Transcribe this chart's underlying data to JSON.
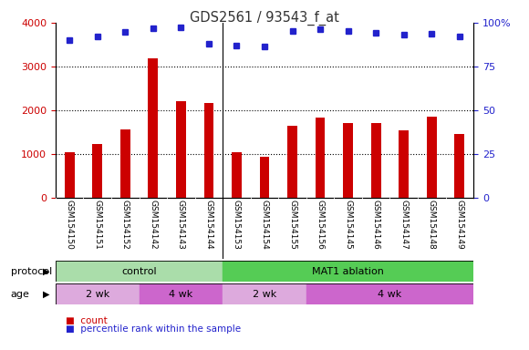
{
  "title": "GDS2561 / 93543_f_at",
  "samples": [
    "GSM154150",
    "GSM154151",
    "GSM154152",
    "GSM154142",
    "GSM154143",
    "GSM154144",
    "GSM154153",
    "GSM154154",
    "GSM154155",
    "GSM154156",
    "GSM154145",
    "GSM154146",
    "GSM154147",
    "GSM154148",
    "GSM154149"
  ],
  "counts": [
    1050,
    1230,
    1560,
    3180,
    2200,
    2160,
    1040,
    940,
    1640,
    1840,
    1700,
    1700,
    1550,
    1860,
    1450
  ],
  "percentile_raw": [
    3600,
    3680,
    3800,
    3880,
    3900,
    3520,
    3480,
    3460,
    3820,
    3860,
    3810,
    3760,
    3720,
    3750,
    3680
  ],
  "ylim_left": [
    0,
    4000
  ],
  "ylim_right": [
    0,
    100
  ],
  "yticks_left": [
    0,
    1000,
    2000,
    3000,
    4000
  ],
  "ytick_labels_left": [
    "0",
    "1000",
    "2000",
    "3000",
    "4000"
  ],
  "yticks_right": [
    0,
    25,
    50,
    75,
    100
  ],
  "ytick_labels_right": [
    "0",
    "25",
    "50",
    "75",
    "100%"
  ],
  "bar_color": "#cc0000",
  "dot_color": "#2222cc",
  "left_axis_color": "#cc0000",
  "right_axis_color": "#2222cc",
  "protocol_groups": [
    {
      "label": "control",
      "start": 0,
      "end": 6,
      "color": "#aaddaa"
    },
    {
      "label": "MAT1 ablation",
      "start": 6,
      "end": 15,
      "color": "#55cc55"
    }
  ],
  "age_groups": [
    {
      "label": "2 wk",
      "start": 0,
      "end": 3,
      "color": "#ddaadd"
    },
    {
      "label": "4 wk",
      "start": 3,
      "end": 6,
      "color": "#cc66cc"
    },
    {
      "label": "2 wk",
      "start": 6,
      "end": 9,
      "color": "#ddaadd"
    },
    {
      "label": "4 wk",
      "start": 9,
      "end": 15,
      "color": "#cc66cc"
    }
  ],
  "protocol_label": "protocol",
  "age_label": "age",
  "legend_count_label": "count",
  "legend_pct_label": "percentile rank within the sample",
  "bg_color": "#ffffff",
  "tick_area_color": "#cccccc",
  "separator_col": 6
}
